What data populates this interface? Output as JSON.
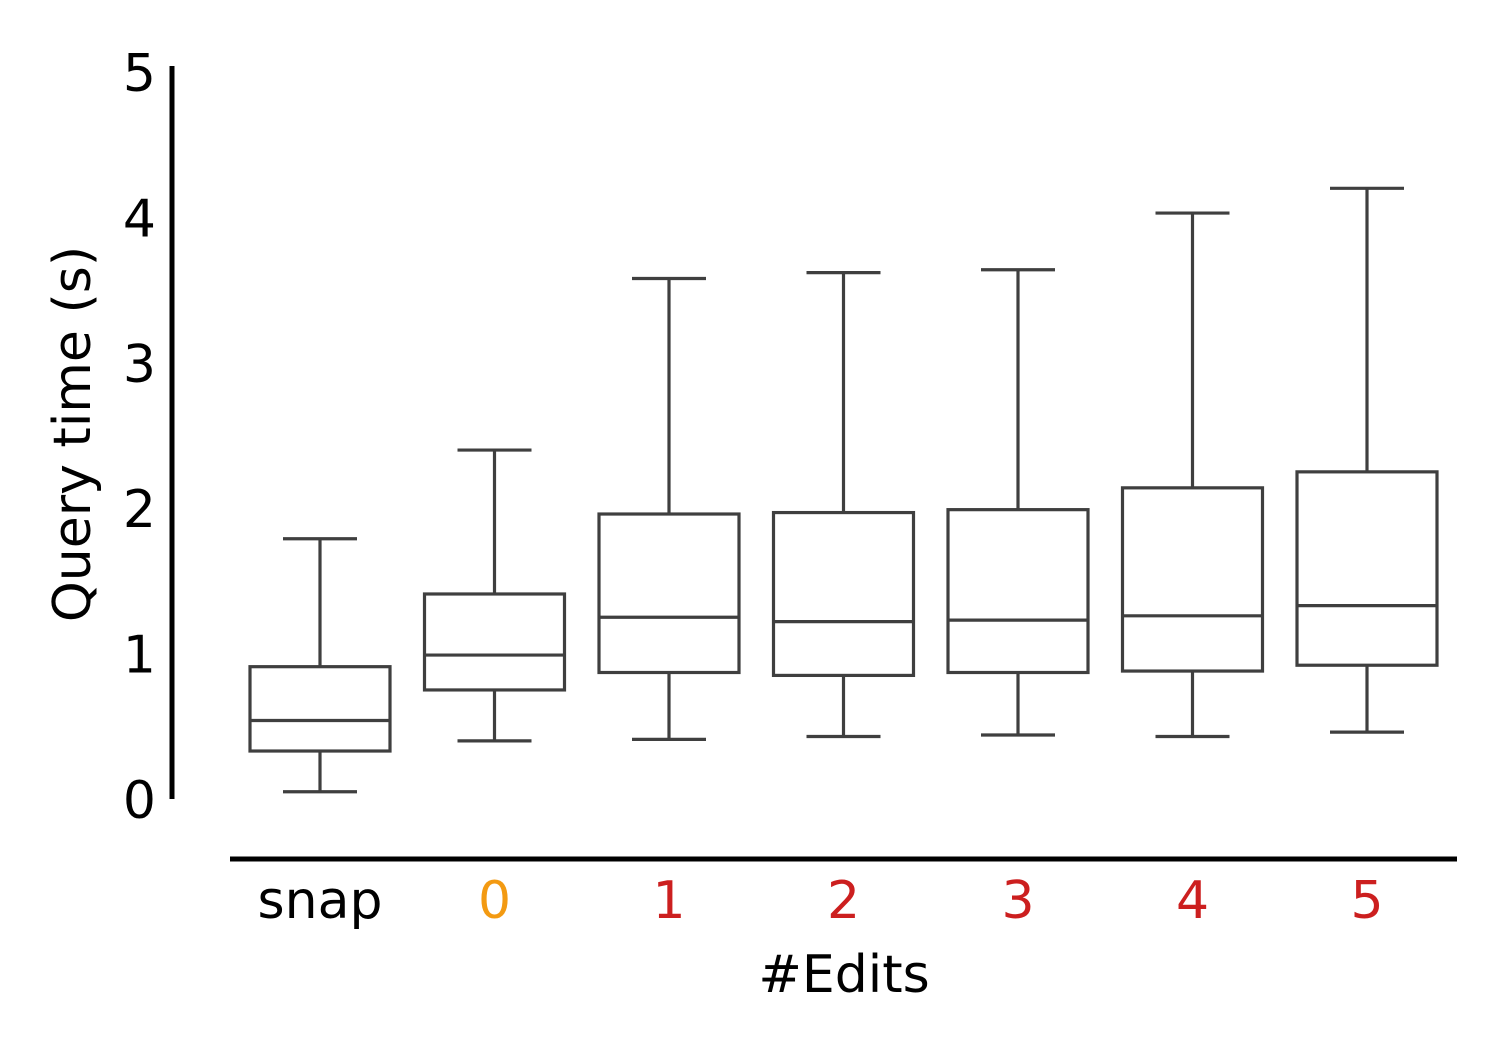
{
  "chart_data": {
    "type": "box",
    "xlabel": "#Edits",
    "ylabel": "Query time (s)",
    "ylim": [
      0,
      5
    ],
    "yticks": [
      0,
      1,
      2,
      3,
      4,
      5
    ],
    "grid": false,
    "categories": [
      {
        "label": "snap",
        "color": "#000000"
      },
      {
        "label": "0",
        "color": "#f39a12"
      },
      {
        "label": "1",
        "color": "#cc1f1f"
      },
      {
        "label": "2",
        "color": "#cc1f1f"
      },
      {
        "label": "3",
        "color": "#cc1f1f"
      },
      {
        "label": "4",
        "color": "#cc1f1f"
      },
      {
        "label": "5",
        "color": "#cc1f1f"
      }
    ],
    "boxes": [
      {
        "whislo": 0.05,
        "q1": 0.33,
        "med": 0.54,
        "q3": 0.91,
        "whishi": 1.79
      },
      {
        "whislo": 0.4,
        "q1": 0.75,
        "med": 0.99,
        "q3": 1.41,
        "whishi": 2.4
      },
      {
        "whislo": 0.41,
        "q1": 0.87,
        "med": 1.25,
        "q3": 1.96,
        "whishi": 3.58
      },
      {
        "whislo": 0.43,
        "q1": 0.85,
        "med": 1.22,
        "q3": 1.97,
        "whishi": 3.62
      },
      {
        "whislo": 0.44,
        "q1": 0.87,
        "med": 1.23,
        "q3": 1.99,
        "whishi": 3.64
      },
      {
        "whislo": 0.43,
        "q1": 0.88,
        "med": 1.26,
        "q3": 2.14,
        "whishi": 4.03
      },
      {
        "whislo": 0.46,
        "q1": 0.92,
        "med": 1.33,
        "q3": 2.25,
        "whishi": 4.2
      }
    ]
  }
}
